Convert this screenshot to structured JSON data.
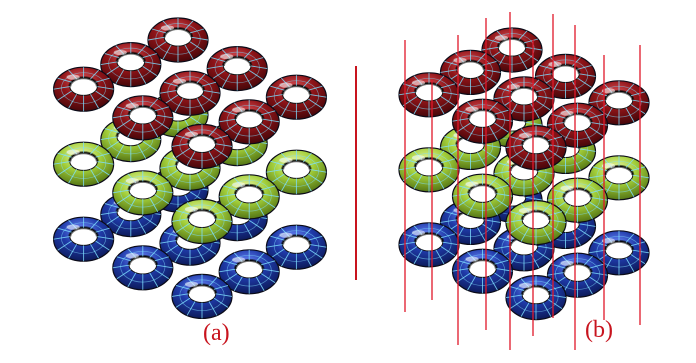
{
  "panels": [
    {
      "id": "a",
      "label": "(a)"
    },
    {
      "id": "b",
      "label": "(b)"
    }
  ],
  "colors": {
    "red_layer": "#8e1418",
    "green_layer": "#a3cf3a",
    "blue_layer": "#1f3aa8",
    "wireframe": "#7fdfff",
    "label_text": "#c8141e",
    "axis_lines": "#e0182a",
    "divider": "#c8141e"
  },
  "structure": {
    "layers": [
      "red",
      "green",
      "blue"
    ],
    "shape": "torus"
  }
}
